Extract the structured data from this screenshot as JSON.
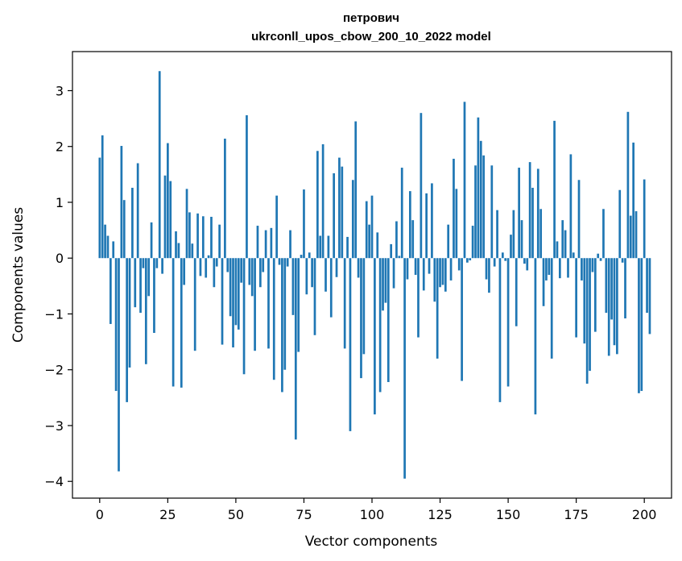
{
  "chart_data": {
    "type": "bar",
    "title": "петрович",
    "subtitle": "ukrconll_upos_cbow_200_10_2022 model",
    "xlabel": "Vector components",
    "ylabel": "Components values",
    "xlim": [
      -10,
      210
    ],
    "ylim": [
      -4.3,
      3.7
    ],
    "xticks": [
      0,
      25,
      50,
      75,
      100,
      125,
      150,
      175,
      200
    ],
    "yticks": [
      -4,
      -3,
      -2,
      -1,
      0,
      1,
      2,
      3
    ],
    "ytick_labels": [
      "−4",
      "−3",
      "−2",
      "−1",
      "0",
      "1",
      "2",
      "3"
    ],
    "grid": false,
    "bar_color": "#1f77b4",
    "values": [
      1.8,
      2.2,
      0.6,
      0.4,
      -1.18,
      0.3,
      -2.38,
      -3.82,
      2.01,
      1.04,
      -2.58,
      -1.96,
      1.26,
      -0.88,
      1.7,
      -0.98,
      -0.18,
      -1.9,
      -0.68,
      0.64,
      -1.34,
      -0.18,
      3.35,
      -0.28,
      1.48,
      2.06,
      1.38,
      -2.3,
      0.48,
      0.27,
      -2.32,
      -0.48,
      1.24,
      0.82,
      0.26,
      -1.66,
      0.8,
      -0.32,
      0.75,
      -0.35,
      0.05,
      0.74,
      -0.52,
      -0.15,
      0.6,
      -1.55,
      2.14,
      -0.25,
      -1.04,
      -1.6,
      -1.2,
      -1.28,
      -0.44,
      -2.08,
      2.56,
      -0.48,
      -0.68,
      -1.66,
      0.58,
      -0.52,
      -0.25,
      0.5,
      -1.62,
      0.54,
      -2.18,
      1.12,
      -0.12,
      -2.4,
      -2.0,
      -0.15,
      0.5,
      -1.02,
      -3.25,
      -1.68,
      0.06,
      1.23,
      -0.65,
      0.1,
      -0.52,
      -1.38,
      1.92,
      0.4,
      2.04,
      -0.6,
      0.4,
      -1.06,
      1.52,
      -0.34,
      1.8,
      1.64,
      -1.62,
      0.38,
      -3.1,
      1.4,
      2.45,
      -0.35,
      -2.15,
      -1.72,
      1.02,
      0.6,
      1.12,
      -2.8,
      0.46,
      -2.4,
      -0.94,
      -0.8,
      -2.22,
      0.25,
      -0.54,
      0.66,
      0.04,
      1.62,
      -3.95,
      -0.38,
      1.2,
      0.68,
      -0.3,
      -1.42,
      2.6,
      -0.58,
      1.16,
      -0.28,
      1.34,
      -0.78,
      -1.8,
      -0.52,
      -0.48,
      -0.6,
      0.6,
      -0.4,
      1.78,
      1.24,
      -0.22,
      -2.2,
      2.8,
      -0.08,
      -0.04,
      0.58,
      1.66,
      2.52,
      2.1,
      1.84,
      -0.38,
      -0.62,
      1.66,
      -0.15,
      0.86,
      -2.58,
      0.1,
      -0.05,
      -2.3,
      0.42,
      0.86,
      -1.22,
      1.62,
      0.68,
      -0.1,
      -0.22,
      1.72,
      1.26,
      -2.8,
      1.6,
      0.88,
      -0.86,
      -0.4,
      -0.3,
      -1.8,
      2.46,
      0.3,
      -0.36,
      0.68,
      0.5,
      -0.35,
      1.86,
      0.1,
      -1.42,
      1.4,
      -0.4,
      -1.53,
      -2.25,
      -2.02,
      -0.25,
      -1.32,
      0.08,
      -0.05,
      0.88,
      -0.98,
      -1.75,
      -1.1,
      -1.56,
      -1.72,
      1.22,
      -0.08,
      -1.08,
      2.62,
      0.76,
      2.07,
      0.84,
      -2.42,
      -2.38,
      1.41,
      -0.98,
      -1.36
    ]
  }
}
